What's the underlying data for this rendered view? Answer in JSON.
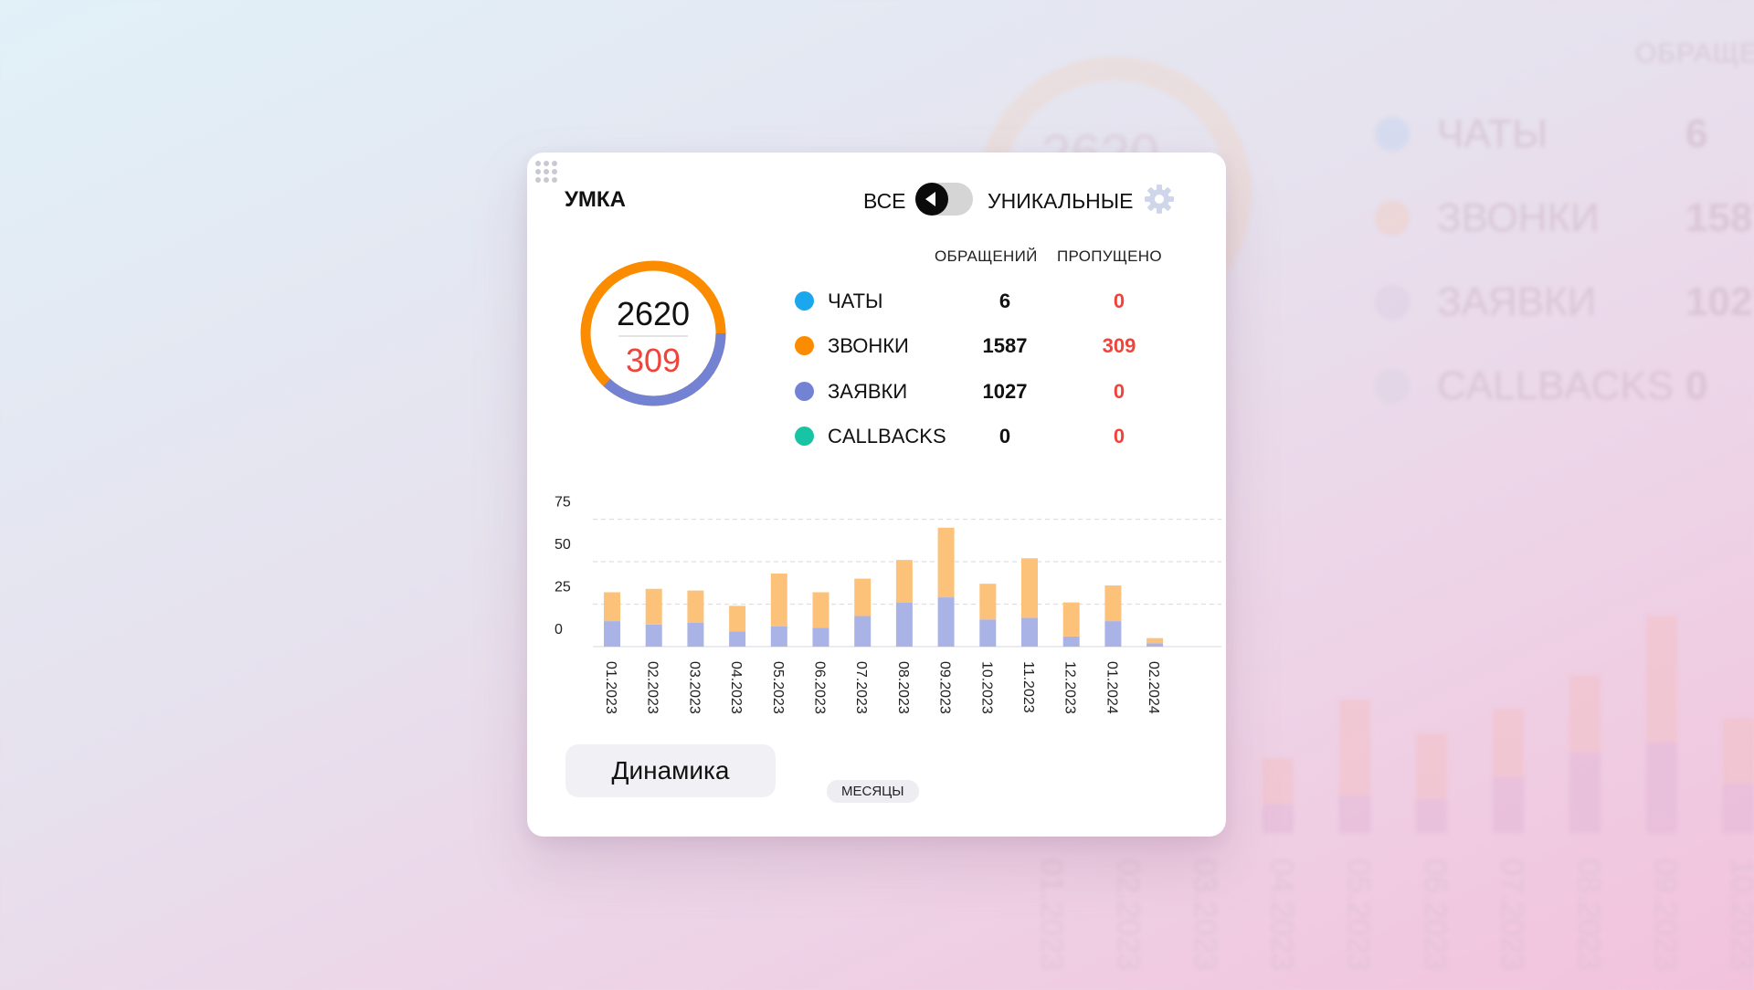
{
  "widget": {
    "title": "УМКА",
    "toggle": {
      "left_label": "ВСЕ",
      "right_label": "УНИКАЛЬНЫЕ",
      "state": "ВСЕ"
    },
    "columns": {
      "received": "ОБРАЩЕНИЙ",
      "missed": "ПРОПУЩЕНО"
    },
    "donut": {
      "total": "2620",
      "missed": "309"
    },
    "legend": [
      {
        "label": "ЧАТЫ",
        "count": "6",
        "missed": "0",
        "color": "#1aa7ee"
      },
      {
        "label": "ЗВОНКИ",
        "count": "1587",
        "missed": "309",
        "color": "#fb8c00"
      },
      {
        "label": "ЗАЯВКИ",
        "count": "1027",
        "missed": "0",
        "color": "#7482d4"
      },
      {
        "label": "CALLBACKS",
        "count": "0",
        "missed": "0",
        "color": "#17c4a3"
      }
    ],
    "dynamics_button": "Динамика",
    "x_axis_label": "МЕСЯЦЫ"
  },
  "colors": {
    "calls": "#fdc27a",
    "requests": "#aab3e6",
    "missed": "#f0433a",
    "ring_calls": "#fb8c00",
    "ring_requests": "#7482d4"
  },
  "chart_data": {
    "type": "bar",
    "stacked": true,
    "categories": [
      "01.2023",
      "02.2023",
      "03.2023",
      "04.2023",
      "05.2023",
      "06.2023",
      "07.2023",
      "08.2023",
      "09.2023",
      "10.2023",
      "11.2023",
      "12.2023",
      "01.2024",
      "02.2024"
    ],
    "series": [
      {
        "values": [
          15,
          13,
          14,
          9,
          12,
          11,
          18,
          26,
          29,
          16,
          17,
          6,
          15,
          2
        ],
        "color": "#aab3e6"
      },
      {
        "values": [
          17,
          21,
          19,
          15,
          31,
          21,
          22,
          25,
          41,
          21,
          35,
          20,
          21,
          3
        ],
        "color": "#fdc27a"
      }
    ],
    "y_ticks": [
      0,
      25,
      50,
      75,
      100
    ],
    "ylim": [
      0,
      100
    ],
    "xlabel": "МЕСЯЦЫ",
    "ylabel": "",
    "grid": true,
    "legend": "none"
  }
}
